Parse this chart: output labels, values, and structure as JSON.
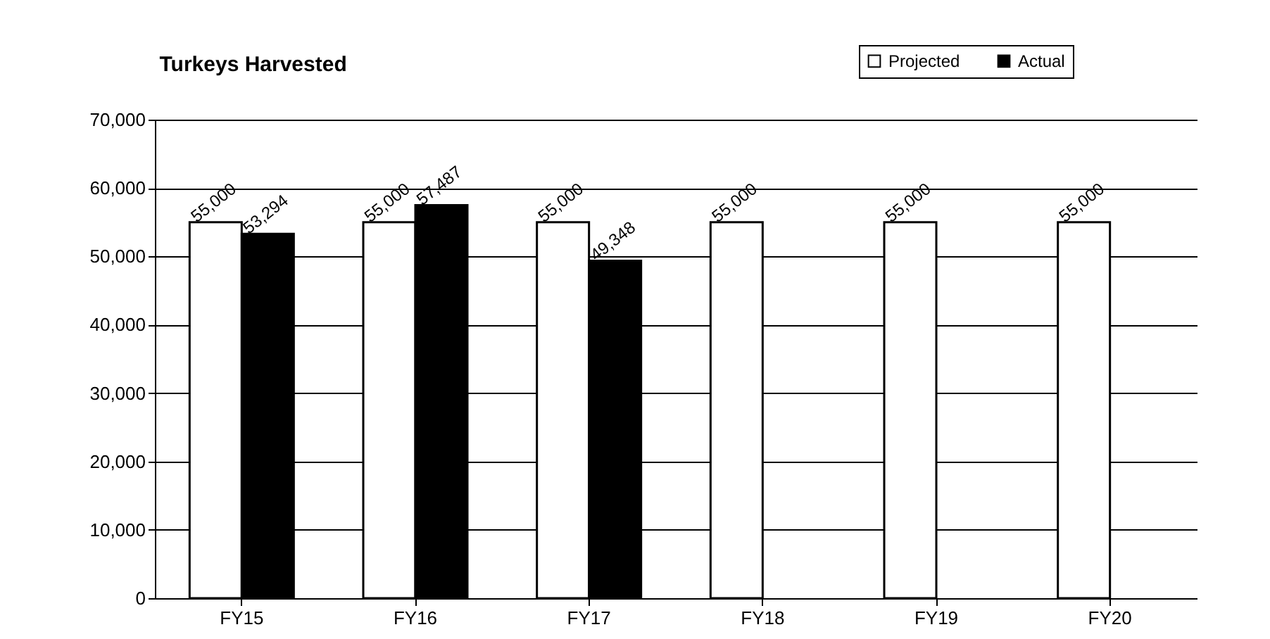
{
  "chart_data": {
    "type": "bar",
    "title": "Turkeys Harvested",
    "categories": [
      "FY15",
      "FY16",
      "FY17",
      "FY18",
      "FY19",
      "FY20"
    ],
    "series": [
      {
        "name": "Projected",
        "color": "#ffffff",
        "values": [
          55000,
          55000,
          55000,
          55000,
          55000,
          55000
        ],
        "value_labels": [
          "55,000",
          "55,000",
          "55,000",
          "55,000",
          "55,000",
          "55,000"
        ]
      },
      {
        "name": "Actual",
        "color": "#000000",
        "values": [
          53294,
          57487,
          49348,
          null,
          null,
          null
        ],
        "value_labels": [
          "53,294",
          "57,487",
          "49,348",
          null,
          null,
          null
        ]
      }
    ],
    "ylim": [
      0,
      70000
    ],
    "yticks": [
      {
        "value": 0,
        "label": "0"
      },
      {
        "value": 10000,
        "label": "10,000"
      },
      {
        "value": 20000,
        "label": "20,000"
      },
      {
        "value": 30000,
        "label": "30,000"
      },
      {
        "value": 40000,
        "label": "40,000"
      },
      {
        "value": 50000,
        "label": "50,000"
      },
      {
        "value": 60000,
        "label": "60,000"
      },
      {
        "value": 70000,
        "label": "70,000"
      }
    ],
    "grid": "y",
    "legend": "top right"
  }
}
